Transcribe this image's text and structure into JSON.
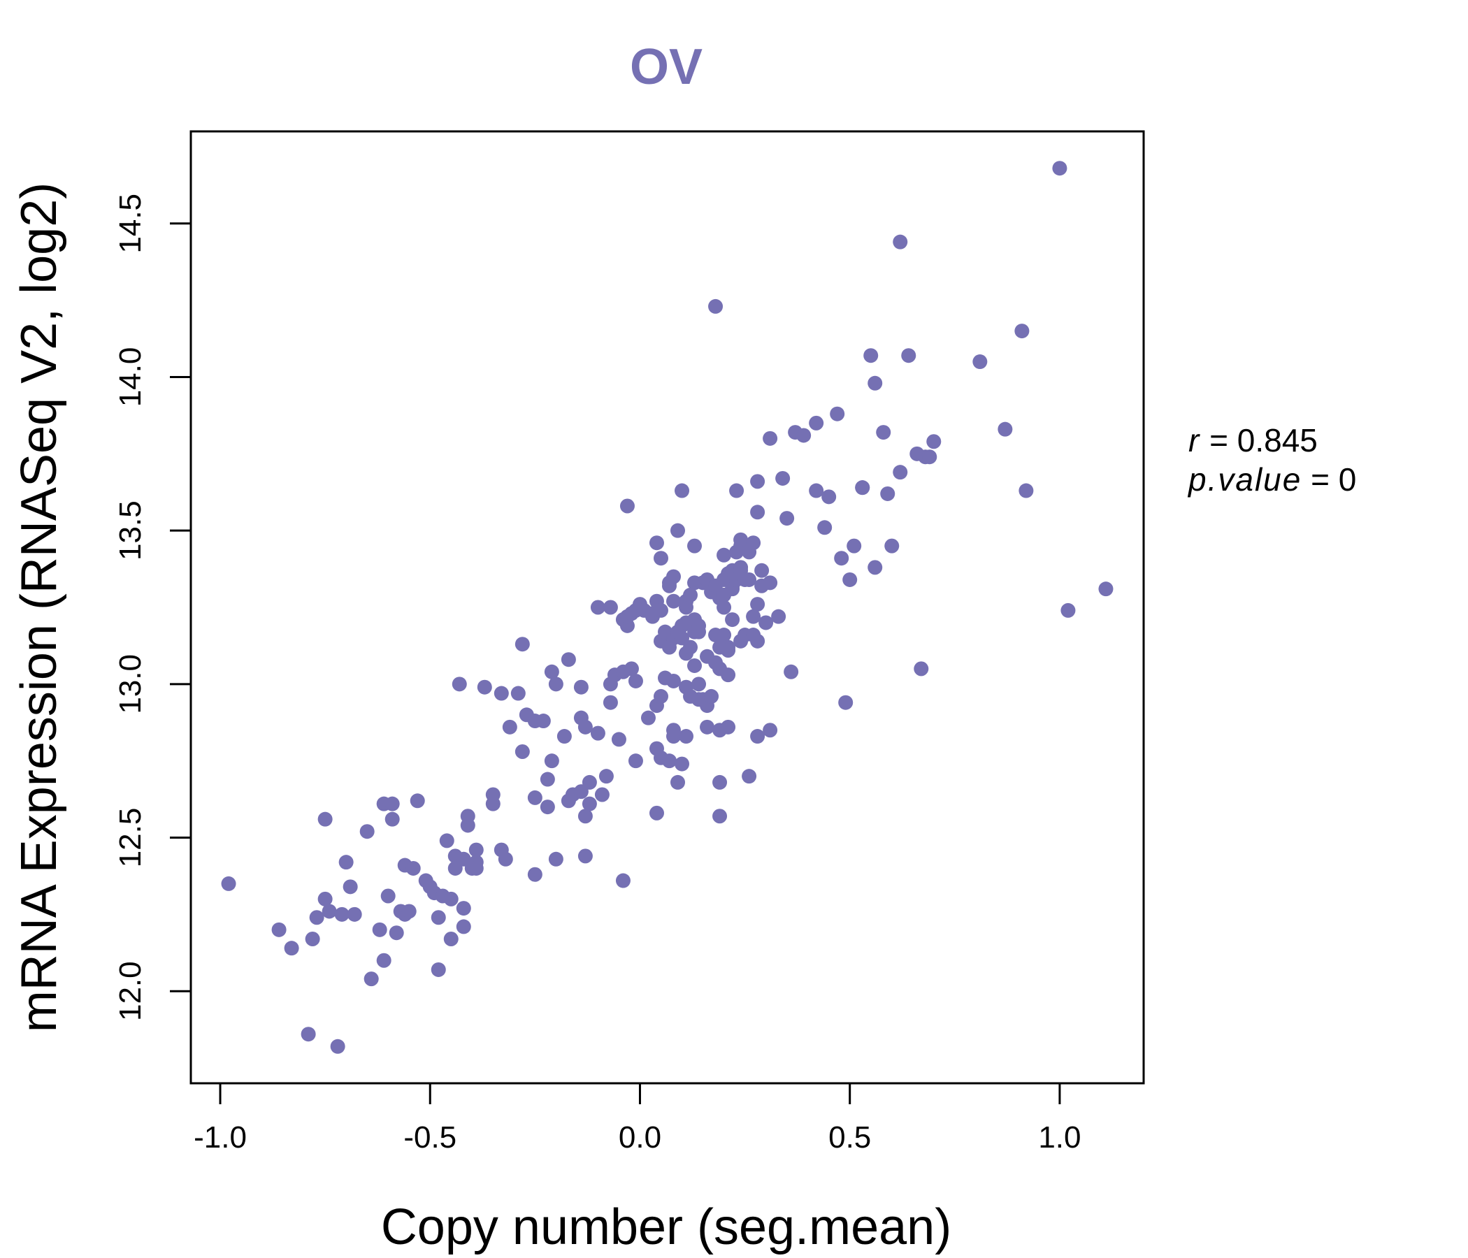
{
  "chart_data": {
    "type": "scatter",
    "title": "OV",
    "xlabel": "Copy number (seg.mean)",
    "ylabel": "mRNA Expression (RNASeq V2, log2)",
    "xlim": [
      -1.07,
      1.2
    ],
    "ylim": [
      11.7,
      14.8
    ],
    "x_ticks": [
      -1.0,
      -0.5,
      0.0,
      0.5,
      1.0
    ],
    "x_tick_labels": [
      "-1.0",
      "-0.5",
      "0.0",
      "0.5",
      "1.0"
    ],
    "y_ticks": [
      12.0,
      12.5,
      13.0,
      13.5,
      14.0,
      14.5
    ],
    "y_tick_labels": [
      "12.0",
      "12.5",
      "13.0",
      "13.5",
      "14.0",
      "14.5"
    ],
    "grid": false,
    "point_color": "#7570b3",
    "stats": {
      "r_label": "r",
      "r_value": "0.845",
      "p_label": "p.value",
      "p_value": "0"
    },
    "points": [
      [
        -0.98,
        12.35
      ],
      [
        -0.86,
        12.2
      ],
      [
        -0.83,
        12.14
      ],
      [
        -0.79,
        11.86
      ],
      [
        -0.78,
        12.17
      ],
      [
        -0.77,
        12.24
      ],
      [
        -0.75,
        12.3
      ],
      [
        -0.75,
        12.56
      ],
      [
        -0.74,
        12.26
      ],
      [
        -0.72,
        11.82
      ],
      [
        -0.71,
        12.25
      ],
      [
        -0.7,
        12.42
      ],
      [
        -0.69,
        12.34
      ],
      [
        -0.68,
        12.25
      ],
      [
        -0.65,
        12.52
      ],
      [
        -0.64,
        12.04
      ],
      [
        -0.62,
        12.2
      ],
      [
        -0.61,
        12.61
      ],
      [
        -0.61,
        12.1
      ],
      [
        -0.6,
        12.31
      ],
      [
        -0.59,
        12.56
      ],
      [
        -0.59,
        12.61
      ],
      [
        -0.58,
        12.19
      ],
      [
        -0.57,
        12.26
      ],
      [
        -0.56,
        12.25
      ],
      [
        -0.56,
        12.41
      ],
      [
        -0.55,
        12.26
      ],
      [
        -0.54,
        12.4
      ],
      [
        -0.53,
        12.62
      ],
      [
        -0.51,
        12.36
      ],
      [
        -0.5,
        12.34
      ],
      [
        -0.49,
        12.32
      ],
      [
        -0.48,
        12.24
      ],
      [
        -0.48,
        12.07
      ],
      [
        -0.47,
        12.31
      ],
      [
        -0.46,
        12.49
      ],
      [
        -0.45,
        12.3
      ],
      [
        -0.45,
        12.17
      ],
      [
        -0.44,
        12.44
      ],
      [
        -0.44,
        12.4
      ],
      [
        -0.43,
        13.0
      ],
      [
        -0.42,
        12.43
      ],
      [
        -0.42,
        12.21
      ],
      [
        -0.42,
        12.27
      ],
      [
        -0.41,
        12.54
      ],
      [
        -0.41,
        12.57
      ],
      [
        -0.4,
        12.4
      ],
      [
        -0.39,
        12.42
      ],
      [
        -0.39,
        12.46
      ],
      [
        -0.39,
        12.4
      ],
      [
        -0.37,
        12.99
      ],
      [
        -0.35,
        12.61
      ],
      [
        -0.35,
        12.64
      ],
      [
        -0.33,
        12.97
      ],
      [
        -0.33,
        12.46
      ],
      [
        -0.32,
        12.43
      ],
      [
        -0.31,
        12.86
      ],
      [
        -0.29,
        12.97
      ],
      [
        -0.28,
        13.13
      ],
      [
        -0.28,
        12.78
      ],
      [
        -0.27,
        12.9
      ],
      [
        -0.25,
        12.38
      ],
      [
        -0.25,
        12.63
      ],
      [
        -0.25,
        12.88
      ],
      [
        -0.23,
        12.88
      ],
      [
        -0.22,
        12.6
      ],
      [
        -0.22,
        12.69
      ],
      [
        -0.21,
        12.75
      ],
      [
        -0.21,
        13.04
      ],
      [
        -0.2,
        13.0
      ],
      [
        -0.2,
        12.43
      ],
      [
        -0.18,
        12.83
      ],
      [
        -0.17,
        13.08
      ],
      [
        -0.17,
        12.62
      ],
      [
        -0.16,
        12.64
      ],
      [
        -0.14,
        12.65
      ],
      [
        -0.14,
        12.89
      ],
      [
        -0.14,
        12.99
      ],
      [
        -0.13,
        12.86
      ],
      [
        -0.13,
        12.57
      ],
      [
        -0.13,
        12.44
      ],
      [
        -0.12,
        12.61
      ],
      [
        -0.12,
        12.68
      ],
      [
        -0.1,
        13.25
      ],
      [
        -0.1,
        12.84
      ],
      [
        -0.09,
        12.64
      ],
      [
        -0.08,
        12.7
      ],
      [
        -0.07,
        13.25
      ],
      [
        -0.07,
        13.0
      ],
      [
        -0.07,
        12.94
      ],
      [
        -0.06,
        13.03
      ],
      [
        -0.05,
        12.82
      ],
      [
        -0.04,
        12.36
      ],
      [
        -0.04,
        13.21
      ],
      [
        -0.04,
        13.04
      ],
      [
        -0.03,
        13.19
      ],
      [
        -0.03,
        13.58
      ],
      [
        -0.03,
        13.22
      ],
      [
        -0.02,
        13.05
      ],
      [
        -0.02,
        13.23
      ],
      [
        -0.01,
        12.75
      ],
      [
        -0.01,
        13.01
      ],
      [
        -0.01,
        13.24
      ],
      [
        0.0,
        13.26
      ],
      [
        0.01,
        13.24
      ],
      [
        0.02,
        12.89
      ],
      [
        0.03,
        13.22
      ],
      [
        0.03,
        13.23
      ],
      [
        0.04,
        12.58
      ],
      [
        0.04,
        12.79
      ],
      [
        0.04,
        13.46
      ],
      [
        0.04,
        13.27
      ],
      [
        0.04,
        12.93
      ],
      [
        0.05,
        13.41
      ],
      [
        0.05,
        13.24
      ],
      [
        0.05,
        13.14
      ],
      [
        0.05,
        12.96
      ],
      [
        0.05,
        12.76
      ],
      [
        0.06,
        13.02
      ],
      [
        0.06,
        13.17
      ],
      [
        0.07,
        13.32
      ],
      [
        0.07,
        12.75
      ],
      [
        0.07,
        13.12
      ],
      [
        0.07,
        13.33
      ],
      [
        0.08,
        13.15
      ],
      [
        0.08,
        13.27
      ],
      [
        0.08,
        12.85
      ],
      [
        0.08,
        12.83
      ],
      [
        0.08,
        13.35
      ],
      [
        0.08,
        13.01
      ],
      [
        0.09,
        13.5
      ],
      [
        0.09,
        12.68
      ],
      [
        0.09,
        13.16
      ],
      [
        0.09,
        13.17
      ],
      [
        0.1,
        12.74
      ],
      [
        0.1,
        13.63
      ],
      [
        0.1,
        13.15
      ],
      [
        0.1,
        13.19
      ],
      [
        0.11,
        13.1
      ],
      [
        0.11,
        12.99
      ],
      [
        0.11,
        12.83
      ],
      [
        0.11,
        13.2
      ],
      [
        0.11,
        13.27
      ],
      [
        0.11,
        13.25
      ],
      [
        0.12,
        13.12
      ],
      [
        0.12,
        13.29
      ],
      [
        0.12,
        12.96
      ],
      [
        0.13,
        13.45
      ],
      [
        0.13,
        13.33
      ],
      [
        0.13,
        13.21
      ],
      [
        0.13,
        13.17
      ],
      [
        0.13,
        13.06
      ],
      [
        0.14,
        12.95
      ],
      [
        0.14,
        13.0
      ],
      [
        0.14,
        13.19
      ],
      [
        0.14,
        13.17
      ],
      [
        0.15,
        12.95
      ],
      [
        0.15,
        13.33
      ],
      [
        0.16,
        12.86
      ],
      [
        0.16,
        13.09
      ],
      [
        0.16,
        12.93
      ],
      [
        0.16,
        13.34
      ],
      [
        0.17,
        13.3
      ],
      [
        0.17,
        12.96
      ],
      [
        0.18,
        14.23
      ],
      [
        0.18,
        13.07
      ],
      [
        0.18,
        13.16
      ],
      [
        0.18,
        13.32
      ],
      [
        0.19,
        12.68
      ],
      [
        0.19,
        12.57
      ],
      [
        0.19,
        12.85
      ],
      [
        0.19,
        13.12
      ],
      [
        0.19,
        13.28
      ],
      [
        0.19,
        13.05
      ],
      [
        0.2,
        13.16
      ],
      [
        0.2,
        13.25
      ],
      [
        0.2,
        13.34
      ],
      [
        0.2,
        13.42
      ],
      [
        0.2,
        13.29
      ],
      [
        0.21,
        13.03
      ],
      [
        0.21,
        13.12
      ],
      [
        0.21,
        12.86
      ],
      [
        0.21,
        13.11
      ],
      [
        0.21,
        13.36
      ],
      [
        0.22,
        13.37
      ],
      [
        0.22,
        13.21
      ],
      [
        0.22,
        13.32
      ],
      [
        0.22,
        13.31
      ],
      [
        0.23,
        13.43
      ],
      [
        0.23,
        13.34
      ],
      [
        0.23,
        13.63
      ],
      [
        0.24,
        13.45
      ],
      [
        0.24,
        13.38
      ],
      [
        0.24,
        13.37
      ],
      [
        0.24,
        13.14
      ],
      [
        0.24,
        13.47
      ],
      [
        0.25,
        13.16
      ],
      [
        0.25,
        13.34
      ],
      [
        0.26,
        12.7
      ],
      [
        0.26,
        13.43
      ],
      [
        0.26,
        13.34
      ],
      [
        0.27,
        13.16
      ],
      [
        0.27,
        13.46
      ],
      [
        0.27,
        13.22
      ],
      [
        0.28,
        13.14
      ],
      [
        0.28,
        13.66
      ],
      [
        0.28,
        13.56
      ],
      [
        0.28,
        13.26
      ],
      [
        0.28,
        12.83
      ],
      [
        0.29,
        13.32
      ],
      [
        0.29,
        13.37
      ],
      [
        0.3,
        13.2
      ],
      [
        0.31,
        13.33
      ],
      [
        0.31,
        12.85
      ],
      [
        0.31,
        13.8
      ],
      [
        0.33,
        13.22
      ],
      [
        0.34,
        13.67
      ],
      [
        0.35,
        13.54
      ],
      [
        0.36,
        13.04
      ],
      [
        0.37,
        13.82
      ],
      [
        0.39,
        13.81
      ],
      [
        0.42,
        13.85
      ],
      [
        0.42,
        13.63
      ],
      [
        0.44,
        13.51
      ],
      [
        0.45,
        13.61
      ],
      [
        0.47,
        13.88
      ],
      [
        0.48,
        13.41
      ],
      [
        0.49,
        12.94
      ],
      [
        0.5,
        13.34
      ],
      [
        0.51,
        13.45
      ],
      [
        0.53,
        13.64
      ],
      [
        0.53,
        13.64
      ],
      [
        0.55,
        14.07
      ],
      [
        0.56,
        13.38
      ],
      [
        0.56,
        13.98
      ],
      [
        0.58,
        13.82
      ],
      [
        0.59,
        13.62
      ],
      [
        0.6,
        13.45
      ],
      [
        0.62,
        14.44
      ],
      [
        0.62,
        13.69
      ],
      [
        0.64,
        14.07
      ],
      [
        0.66,
        13.75
      ],
      [
        0.67,
        13.05
      ],
      [
        0.68,
        13.74
      ],
      [
        0.69,
        13.74
      ],
      [
        0.7,
        13.79
      ],
      [
        0.81,
        14.05
      ],
      [
        0.87,
        13.83
      ],
      [
        0.91,
        14.15
      ],
      [
        0.92,
        13.63
      ],
      [
        1.0,
        14.68
      ],
      [
        1.02,
        13.24
      ],
      [
        1.11,
        13.31
      ]
    ]
  }
}
